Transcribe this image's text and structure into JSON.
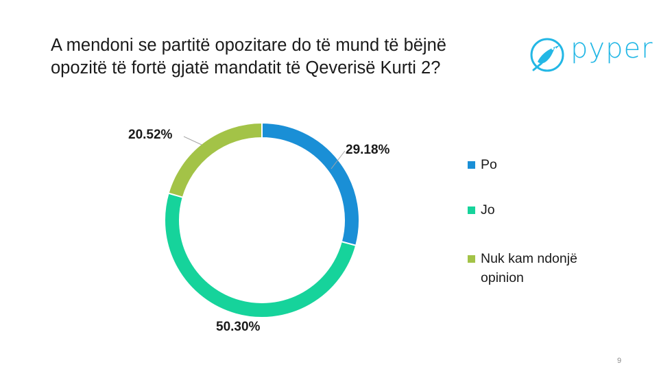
{
  "slide": {
    "title": "A mendoni se partitë opozitare do të mund të bëjnë opozitë të fortë gjatë mandatit të Qeverisë Kurti 2?",
    "page_number": "9"
  },
  "logo": {
    "text": "pyper",
    "icon": "bird-icon",
    "color": "#23b7e5"
  },
  "chart_data": {
    "type": "pie",
    "donut": true,
    "title": "",
    "categories": [
      "Po",
      "Jo",
      "Nuk kam ndonjë opinion"
    ],
    "values": [
      29.18,
      50.3,
      20.52
    ],
    "labels": [
      "29.18%",
      "50.30%",
      "20.52%"
    ],
    "colors": [
      "#1a8fd6",
      "#16d39b",
      "#a3c347"
    ],
    "legend_position": "right"
  }
}
